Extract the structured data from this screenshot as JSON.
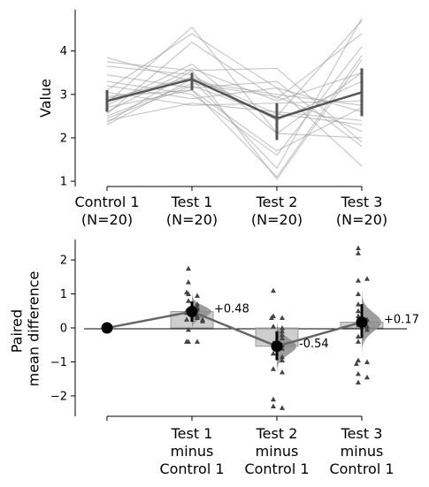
{
  "chart_data": [
    {
      "type": "line",
      "ylabel": "Value",
      "ylim": [
        0.88,
        4.95
      ],
      "yticks": [
        "1",
        "2",
        "3",
        "4"
      ],
      "groups": [
        {
          "name": "Control 1",
          "n": "(N=20)"
        },
        {
          "name": "Test 1",
          "n": "(N=20)"
        },
        {
          "name": "Test 2",
          "n": "(N=20)"
        },
        {
          "name": "Test 3",
          "n": "(N=20)"
        }
      ],
      "paired_series": [
        [
          2.45,
          3.2,
          2.5,
          4.7
        ],
        [
          2.3,
          3.35,
          1.3,
          4.75
        ],
        [
          2.8,
          4.55,
          2.1,
          3.5
        ],
        [
          3.1,
          4.4,
          3.15,
          1.35
        ],
        [
          3.85,
          3.3,
          3.0,
          2.75
        ],
        [
          3.75,
          3.55,
          3.6,
          1.9
        ],
        [
          2.55,
          4.2,
          2.9,
          4.4
        ],
        [
          3.65,
          3.45,
          2.4,
          3.3
        ],
        [
          2.95,
          3.1,
          1.1,
          3.9
        ],
        [
          2.4,
          2.8,
          2.6,
          2.4
        ],
        [
          2.7,
          3.1,
          1.7,
          2.7
        ],
        [
          3.2,
          2.9,
          3.15,
          2.6
        ],
        [
          2.6,
          3.6,
          2.85,
          3.5
        ],
        [
          2.9,
          3.4,
          2.55,
          2.3
        ],
        [
          3.3,
          3.0,
          1.6,
          4.1
        ],
        [
          2.5,
          3.25,
          2.95,
          2.15
        ],
        [
          2.35,
          3.55,
          1.05,
          3.8
        ],
        [
          3.05,
          2.75,
          2.8,
          2.85
        ],
        [
          2.75,
          3.7,
          2.1,
          2.0
        ],
        [
          3.45,
          3.15,
          3.3,
          1.8
        ]
      ],
      "means": [
        2.85,
        3.35,
        2.45,
        3.05
      ],
      "sd_bars": [
        [
          2.6,
          3.1
        ],
        [
          3.1,
          3.5
        ],
        [
          1.95,
          2.8
        ],
        [
          2.5,
          3.6
        ]
      ]
    },
    {
      "type": "scatter",
      "ylabel": "Paired\nmean difference",
      "ylim": [
        -2.6,
        2.6
      ],
      "yticks": [
        "−2",
        "−1",
        "0",
        "1",
        "2"
      ],
      "comparisons": [
        {
          "label": [
            "Test 1",
            "minus",
            "Control 1"
          ],
          "mean_diff": 0.48,
          "annotation": "+0.48",
          "ci": [
            0.18,
            0.78
          ],
          "points": [
            1.75,
            1.35,
            1.0,
            0.95,
            1.05,
            0.8,
            0.7,
            0.6,
            0.55,
            0.5,
            0.45,
            0.35,
            0.3,
            0.25,
            0.25,
            0.2,
            -0.05,
            -0.4,
            -0.4,
            -0.4
          ]
        },
        {
          "label": [
            "Test 2",
            "minus",
            "Control 1"
          ],
          "mean_diff": -0.54,
          "annotation": "-0.54",
          "ci": [
            -0.95,
            -0.1
          ],
          "points": [
            1.1,
            0.35,
            0.3,
            0.3,
            0.05,
            0.0,
            -0.1,
            -0.2,
            -0.3,
            -0.45,
            -0.5,
            -0.6,
            -0.75,
            -0.85,
            -0.95,
            -1.2,
            -1.3,
            -2.1,
            -2.3,
            -2.35
          ]
        },
        {
          "label": [
            "Test 3",
            "minus",
            "Control 1"
          ],
          "mean_diff": 0.17,
          "annotation": "+0.17",
          "ci": [
            -0.3,
            0.7
          ],
          "points": [
            2.35,
            2.2,
            1.4,
            1.45,
            1.0,
            0.7,
            0.5,
            0.35,
            0.25,
            0.1,
            0.05,
            -0.05,
            -0.25,
            -0.4,
            -0.95,
            -1.0,
            -1.05,
            -1.35,
            -1.45,
            -1.6
          ]
        }
      ]
    }
  ]
}
